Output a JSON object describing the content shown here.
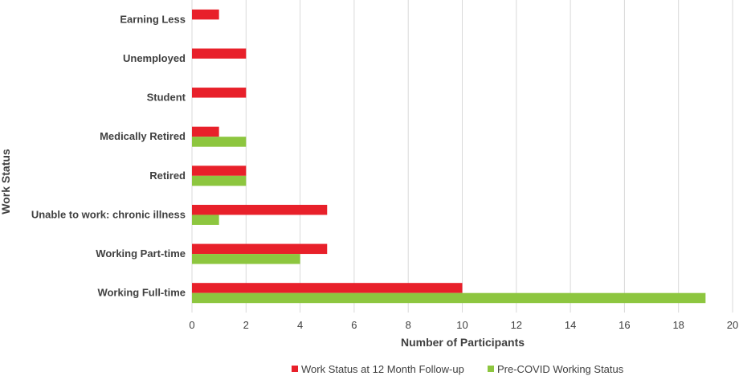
{
  "chart_data": {
    "type": "bar",
    "orientation": "horizontal",
    "categories": [
      "Earning Less",
      "Unemployed",
      "Student",
      "Medically Retired",
      "Retired",
      "Unable to work: chronic illness",
      "Working Part-time",
      "Working Full-time"
    ],
    "series": [
      {
        "name": "Work Status at 12 Month Follow-up",
        "color": "#e8202a",
        "values": [
          1,
          2,
          2,
          1,
          2,
          5,
          5,
          10
        ]
      },
      {
        "name": "Pre-COVID Working Status",
        "color": "#8dc63f",
        "values": [
          0,
          0,
          0,
          2,
          2,
          1,
          4,
          19
        ]
      }
    ],
    "xlabel": "Number of Participants",
    "ylabel": "Work Status",
    "xlim": [
      0,
      20
    ],
    "xticks": [
      "0",
      "2",
      "4",
      "6",
      "8",
      "10",
      "12",
      "14",
      "16",
      "18",
      "20"
    ],
    "grid": "vertical",
    "legend_position": "bottom"
  }
}
